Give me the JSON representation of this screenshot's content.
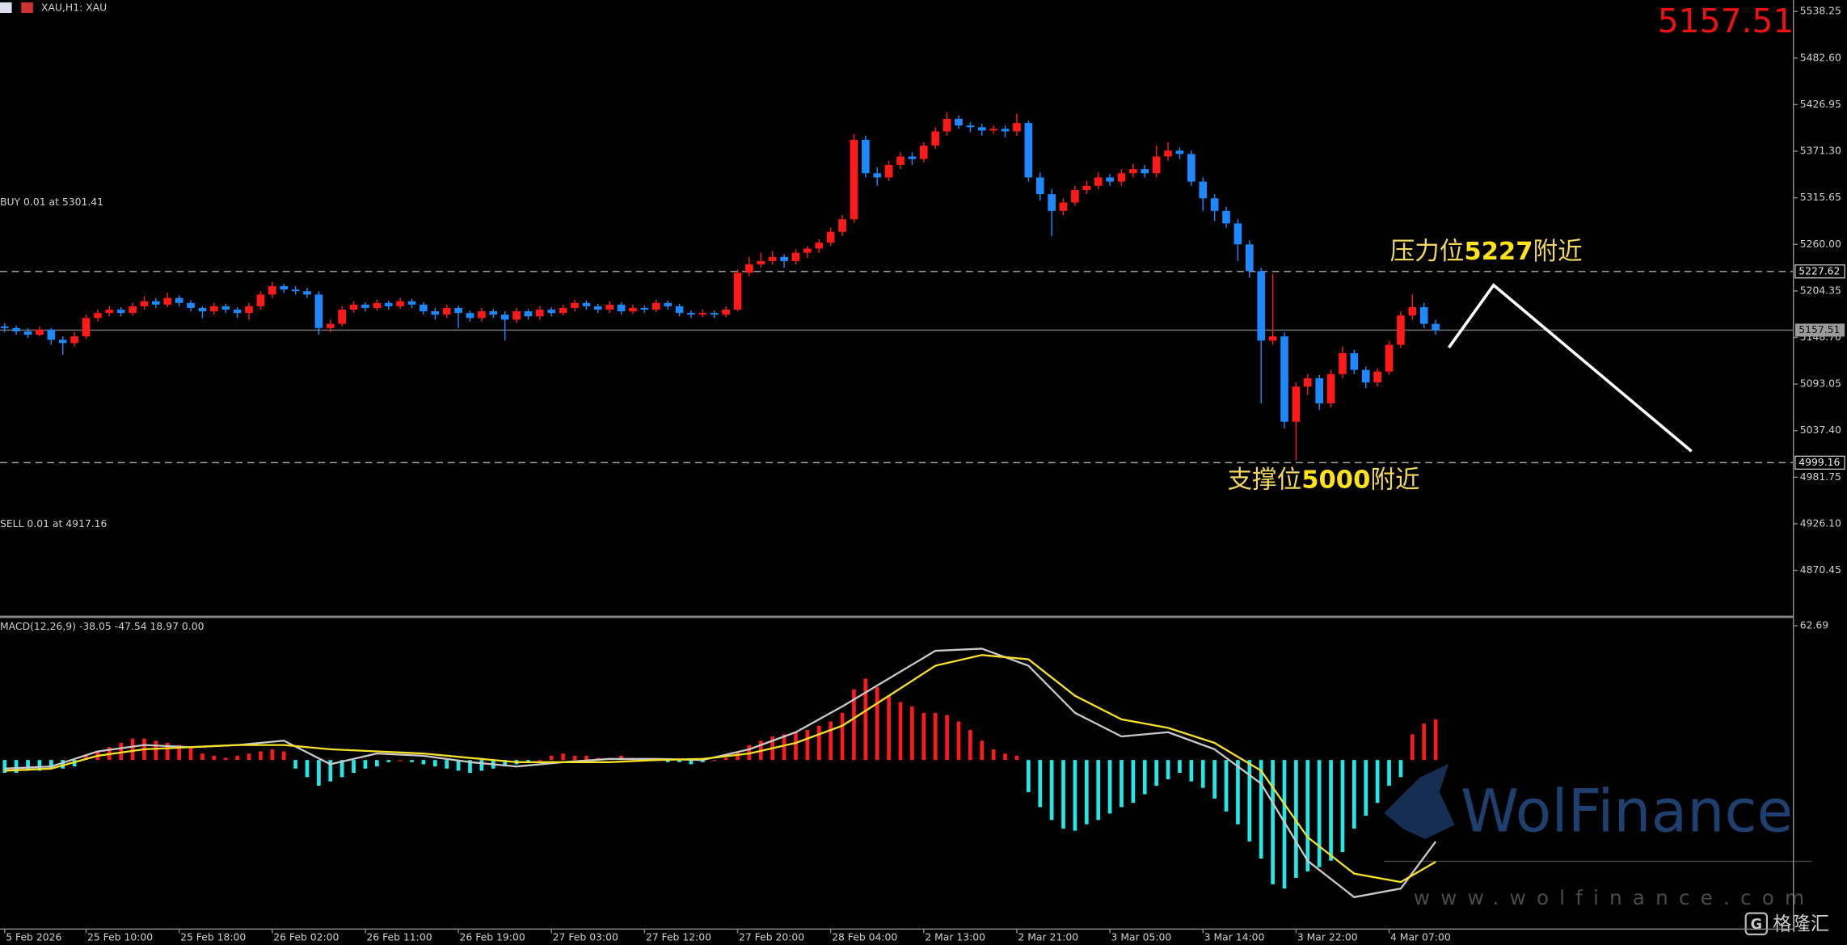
{
  "bid": 5157.51,
  "orders": [
    {
      "label": "BUY 0.01 at 5301.41"
    },
    {
      "label": "SELL 0.01 at 4917.16"
    }
  ],
  "annotations": [
    {
      "parts": [
        "压力位",
        "5227",
        "附近"
      ]
    },
    {
      "parts": [
        "支撑位",
        "5000",
        "附近"
      ]
    }
  ],
  "watermark": {
    "brand": "WolFinance",
    "url": "www.wolfinance.com",
    "source": "格隆汇"
  },
  "chart_data": [
    {
      "type": "candlestick",
      "title": "XAU,H1: XAU",
      "up_color": "#ff1a1a",
      "down_color": "#1e88ff",
      "xlim": [
        -0.4,
        153.7
      ],
      "ylim": [
        4817,
        5552
      ],
      "yticks": [
        {
          "value": 5538.25,
          "label": "5538.25"
        },
        {
          "value": 5482.6,
          "label": "5482.60"
        },
        {
          "value": 5426.95,
          "label": "5426.95"
        },
        {
          "value": 5371.3,
          "label": "5371.30"
        },
        {
          "value": 5315.65,
          "label": "5315.65"
        },
        {
          "value": 5260,
          "label": "5260.00"
        },
        {
          "value": 5204.35,
          "label": "5204.35"
        },
        {
          "value": 5148.7,
          "label": "5148.70"
        },
        {
          "value": 5093.05,
          "label": "5093.05"
        },
        {
          "value": 5037.4,
          "label": "5037.40"
        },
        {
          "value": 4981.75,
          "label": "4981.75"
        },
        {
          "value": 4926.1,
          "label": "4926.10"
        },
        {
          "value": 4870.45,
          "label": "4870.45"
        }
      ],
      "xticks": [
        {
          "value": 0,
          "label": "5 Feb 2026"
        },
        {
          "value": 7,
          "label": "25 Feb 10:00"
        },
        {
          "value": 15,
          "label": "25 Feb 18:00"
        },
        {
          "value": 23,
          "label": "26 Feb 02:00"
        },
        {
          "value": 31,
          "label": "26 Feb 11:00"
        },
        {
          "value": 39,
          "label": "26 Feb 19:00"
        },
        {
          "value": 47,
          "label": "27 Feb 03:00"
        },
        {
          "value": 55,
          "label": "27 Feb 12:00"
        },
        {
          "value": 63,
          "label": "27 Feb 20:00"
        },
        {
          "value": 71,
          "label": "28 Feb 04:00"
        },
        {
          "value": 79,
          "label": "2 Mar 13:00"
        },
        {
          "value": 87,
          "label": "2 Mar 21:00"
        },
        {
          "value": 95,
          "label": "3 Mar 05:00"
        },
        {
          "value": 103,
          "label": "3 Mar 14:00"
        },
        {
          "value": 111,
          "label": "3 Mar 22:00"
        },
        {
          "value": 119,
          "label": "4 Mar 07:00"
        }
      ],
      "levels": [
        {
          "value": 5227.62,
          "style": "dashed",
          "color": "#b0b0b0"
        },
        {
          "value": 5157.51,
          "style": "solid",
          "color": "#707070"
        },
        {
          "value": 4999.16,
          "style": "dashed",
          "color": "#b0b0b0"
        }
      ],
      "candles": [
        [
          5162,
          5166,
          5155,
          5160
        ],
        [
          5160,
          5163,
          5152,
          5156
        ],
        [
          5156,
          5160,
          5148,
          5152
        ],
        [
          5152,
          5162,
          5150,
          5158
        ],
        [
          5158,
          5160,
          5140,
          5146
        ],
        [
          5146,
          5150,
          5128,
          5142
        ],
        [
          5142,
          5155,
          5138,
          5150
        ],
        [
          5150,
          5176,
          5147,
          5172
        ],
        [
          5172,
          5182,
          5168,
          5178
        ],
        [
          5178,
          5186,
          5174,
          5182
        ],
        [
          5182,
          5185,
          5174,
          5178
        ],
        [
          5178,
          5190,
          5175,
          5186
        ],
        [
          5186,
          5198,
          5182,
          5192
        ],
        [
          5192,
          5196,
          5184,
          5188
        ],
        [
          5188,
          5202,
          5185,
          5196
        ],
        [
          5196,
          5199,
          5186,
          5190
        ],
        [
          5190,
          5193,
          5180,
          5184
        ],
        [
          5184,
          5186,
          5172,
          5180
        ],
        [
          5180,
          5190,
          5176,
          5186
        ],
        [
          5186,
          5189,
          5178,
          5182
        ],
        [
          5182,
          5185,
          5172,
          5178
        ],
        [
          5178,
          5190,
          5170,
          5186
        ],
        [
          5186,
          5204,
          5182,
          5200
        ],
        [
          5200,
          5215,
          5196,
          5210
        ],
        [
          5210,
          5213,
          5202,
          5206
        ],
        [
          5206,
          5210,
          5200,
          5204
        ],
        [
          5204,
          5208,
          5196,
          5200
        ],
        [
          5200,
          5204,
          5152,
          5160
        ],
        [
          5160,
          5170,
          5155,
          5165
        ],
        [
          5165,
          5186,
          5162,
          5182
        ],
        [
          5182,
          5192,
          5178,
          5188
        ],
        [
          5188,
          5191,
          5180,
          5184
        ],
        [
          5184,
          5194,
          5181,
          5190
        ],
        [
          5190,
          5193,
          5182,
          5186
        ],
        [
          5186,
          5196,
          5183,
          5192
        ],
        [
          5192,
          5195,
          5184,
          5188
        ],
        [
          5188,
          5191,
          5176,
          5180
        ],
        [
          5180,
          5184,
          5170,
          5176
        ],
        [
          5176,
          5188,
          5172,
          5184
        ],
        [
          5184,
          5187,
          5160,
          5178
        ],
        [
          5178,
          5181,
          5168,
          5172
        ],
        [
          5172,
          5184,
          5168,
          5180
        ],
        [
          5180,
          5183,
          5172,
          5176
        ],
        [
          5176,
          5180,
          5145,
          5170
        ],
        [
          5170,
          5184,
          5166,
          5180
        ],
        [
          5180,
          5183,
          5170,
          5174
        ],
        [
          5174,
          5186,
          5170,
          5182
        ],
        [
          5182,
          5185,
          5174,
          5178
        ],
        [
          5178,
          5188,
          5175,
          5184
        ],
        [
          5184,
          5194,
          5180,
          5190
        ],
        [
          5190,
          5193,
          5182,
          5186
        ],
        [
          5186,
          5189,
          5178,
          5182
        ],
        [
          5182,
          5192,
          5178,
          5188
        ],
        [
          5188,
          5191,
          5176,
          5180
        ],
        [
          5180,
          5188,
          5177,
          5184
        ],
        [
          5184,
          5187,
          5178,
          5182
        ],
        [
          5182,
          5194,
          5179,
          5190
        ],
        [
          5190,
          5193,
          5182,
          5186
        ],
        [
          5186,
          5189,
          5174,
          5178
        ],
        [
          5178,
          5181,
          5172,
          5176
        ],
        [
          5176,
          5182,
          5173,
          5178
        ],
        [
          5178,
          5181,
          5172,
          5176
        ],
        [
          5176,
          5186,
          5173,
          5182
        ],
        [
          5182,
          5230,
          5180,
          5226
        ],
        [
          5226,
          5245,
          5222,
          5236
        ],
        [
          5236,
          5250,
          5232,
          5240
        ],
        [
          5240,
          5252,
          5236,
          5245
        ],
        [
          5245,
          5248,
          5232,
          5240
        ],
        [
          5240,
          5254,
          5236,
          5250
        ],
        [
          5250,
          5258,
          5244,
          5255
        ],
        [
          5255,
          5266,
          5250,
          5262
        ],
        [
          5262,
          5280,
          5258,
          5275
        ],
        [
          5275,
          5295,
          5270,
          5290
        ],
        [
          5290,
          5392,
          5286,
          5385
        ],
        [
          5385,
          5390,
          5340,
          5345
        ],
        [
          5345,
          5352,
          5330,
          5340
        ],
        [
          5340,
          5360,
          5336,
          5355
        ],
        [
          5355,
          5370,
          5350,
          5365
        ],
        [
          5365,
          5370,
          5355,
          5362
        ],
        [
          5362,
          5382,
          5358,
          5378
        ],
        [
          5378,
          5400,
          5374,
          5395
        ],
        [
          5395,
          5418,
          5390,
          5410
        ],
        [
          5410,
          5414,
          5398,
          5402
        ],
        [
          5402,
          5406,
          5394,
          5400
        ],
        [
          5400,
          5404,
          5390,
          5396
        ],
        [
          5396,
          5402,
          5392,
          5398
        ],
        [
          5398,
          5402,
          5388,
          5395
        ],
        [
          5395,
          5416,
          5390,
          5405
        ],
        [
          5405,
          5408,
          5335,
          5340
        ],
        [
          5340,
          5346,
          5312,
          5320
        ],
        [
          5320,
          5326,
          5270,
          5300
        ],
        [
          5300,
          5315,
          5295,
          5310
        ],
        [
          5310,
          5330,
          5306,
          5325
        ],
        [
          5325,
          5336,
          5320,
          5330
        ],
        [
          5330,
          5346,
          5326,
          5340
        ],
        [
          5340,
          5344,
          5330,
          5335
        ],
        [
          5335,
          5350,
          5330,
          5345
        ],
        [
          5345,
          5356,
          5340,
          5350
        ],
        [
          5350,
          5355,
          5340,
          5345
        ],
        [
          5345,
          5378,
          5340,
          5365
        ],
        [
          5365,
          5382,
          5360,
          5372
        ],
        [
          5372,
          5376,
          5362,
          5368
        ],
        [
          5368,
          5372,
          5330,
          5335
        ],
        [
          5335,
          5340,
          5300,
          5315
        ],
        [
          5315,
          5320,
          5288,
          5300
        ],
        [
          5300,
          5305,
          5280,
          5285
        ],
        [
          5285,
          5290,
          5240,
          5260
        ],
        [
          5260,
          5265,
          5220,
          5228
        ],
        [
          5228,
          5232,
          5070,
          5145
        ],
        [
          5145,
          5225,
          5140,
          5150
        ],
        [
          5150,
          5155,
          5040,
          5048
        ],
        [
          5048,
          5095,
          5002,
          5090
        ],
        [
          5090,
          5105,
          5080,
          5100
        ],
        [
          5100,
          5104,
          5062,
          5070
        ],
        [
          5070,
          5110,
          5065,
          5105
        ],
        [
          5105,
          5138,
          5100,
          5130
        ],
        [
          5130,
          5134,
          5105,
          5110
        ],
        [
          5110,
          5114,
          5088,
          5095
        ],
        [
          5095,
          5112,
          5090,
          5108
        ],
        [
          5108,
          5145,
          5104,
          5140
        ],
        [
          5140,
          5180,
          5136,
          5175
        ],
        [
          5175,
          5200,
          5170,
          5185
        ],
        [
          5185,
          5190,
          5160,
          5165
        ],
        [
          5165,
          5170,
          5152,
          5157.51
        ]
      ]
    },
    {
      "type": "bar",
      "title": "MACD(12,26,9) -38.05 -47.54 18.97 0.00",
      "positive_color": "#ff1a1a",
      "negative_color": "#22e8e8",
      "xlim": [
        -0.4,
        153.7
      ],
      "ylim": [
        -78.65,
        65.45
      ],
      "yticks": [
        62.69
      ],
      "values": [
        -6,
        -6,
        -5,
        -5,
        -4,
        -4,
        -3,
        2,
        4,
        6,
        8,
        10,
        10,
        9,
        8,
        7,
        6,
        3,
        2,
        1,
        2,
        3,
        4,
        5,
        4,
        -4,
        -8,
        -12,
        -10,
        -8,
        -6,
        -4,
        -3,
        -1,
        0,
        -1,
        -2,
        -3,
        -4,
        -5,
        -6,
        -5,
        -4,
        -3,
        -2,
        -1,
        0,
        2,
        3,
        2,
        2,
        1,
        1,
        2,
        1,
        1,
        0,
        -1,
        -1,
        -2,
        -1,
        0,
        1,
        4,
        7,
        9,
        11,
        12,
        13,
        14,
        16,
        18,
        22,
        33,
        38,
        34,
        30,
        27,
        25,
        22,
        22,
        21,
        18,
        14,
        9,
        5,
        3,
        2,
        -15,
        -22,
        -28,
        -32,
        -33,
        -30,
        -28,
        -25,
        -22,
        -20,
        -16,
        -12,
        -9,
        -6,
        -10,
        -13,
        -18,
        -24,
        -30,
        -38,
        -46,
        -58,
        -60,
        -55,
        -52,
        -50,
        -47,
        -43,
        -32,
        -26,
        -20,
        -12,
        -8,
        12,
        17,
        18.97
      ],
      "series": [
        {
          "color": "#c8c8c8",
          "x": [
            0,
            4,
            8,
            12,
            16,
            20,
            24,
            28,
            32,
            36,
            40,
            44,
            48,
            52,
            56,
            60,
            64,
            68,
            72,
            76,
            80,
            84,
            88,
            92,
            96,
            100,
            104,
            108,
            112,
            116,
            120,
            123
          ],
          "values": [
            -4,
            -3,
            4,
            7,
            6,
            7,
            9,
            -2,
            3,
            2,
            -1,
            -3,
            -1,
            0.5,
            0.5,
            0,
            5,
            13,
            25,
            38,
            51,
            52,
            44,
            22,
            11,
            13,
            5,
            -11,
            -47,
            -64,
            -60,
            -38.05
          ]
        },
        {
          "color": "#f5e02a",
          "x": [
            0,
            4,
            8,
            12,
            16,
            20,
            24,
            28,
            32,
            36,
            40,
            44,
            48,
            52,
            56,
            60,
            64,
            68,
            72,
            76,
            80,
            84,
            88,
            92,
            96,
            100,
            104,
            108,
            112,
            116,
            120,
            123
          ],
          "values": [
            -5,
            -4,
            2,
            5,
            6,
            7,
            7,
            5,
            4,
            3,
            1,
            -1,
            -1,
            -1,
            0,
            0.5,
            3,
            8,
            16,
            30,
            44,
            49,
            47,
            30,
            19,
            15,
            8,
            -5,
            -36,
            -53,
            -57,
            -47.54
          ]
        }
      ]
    }
  ]
}
